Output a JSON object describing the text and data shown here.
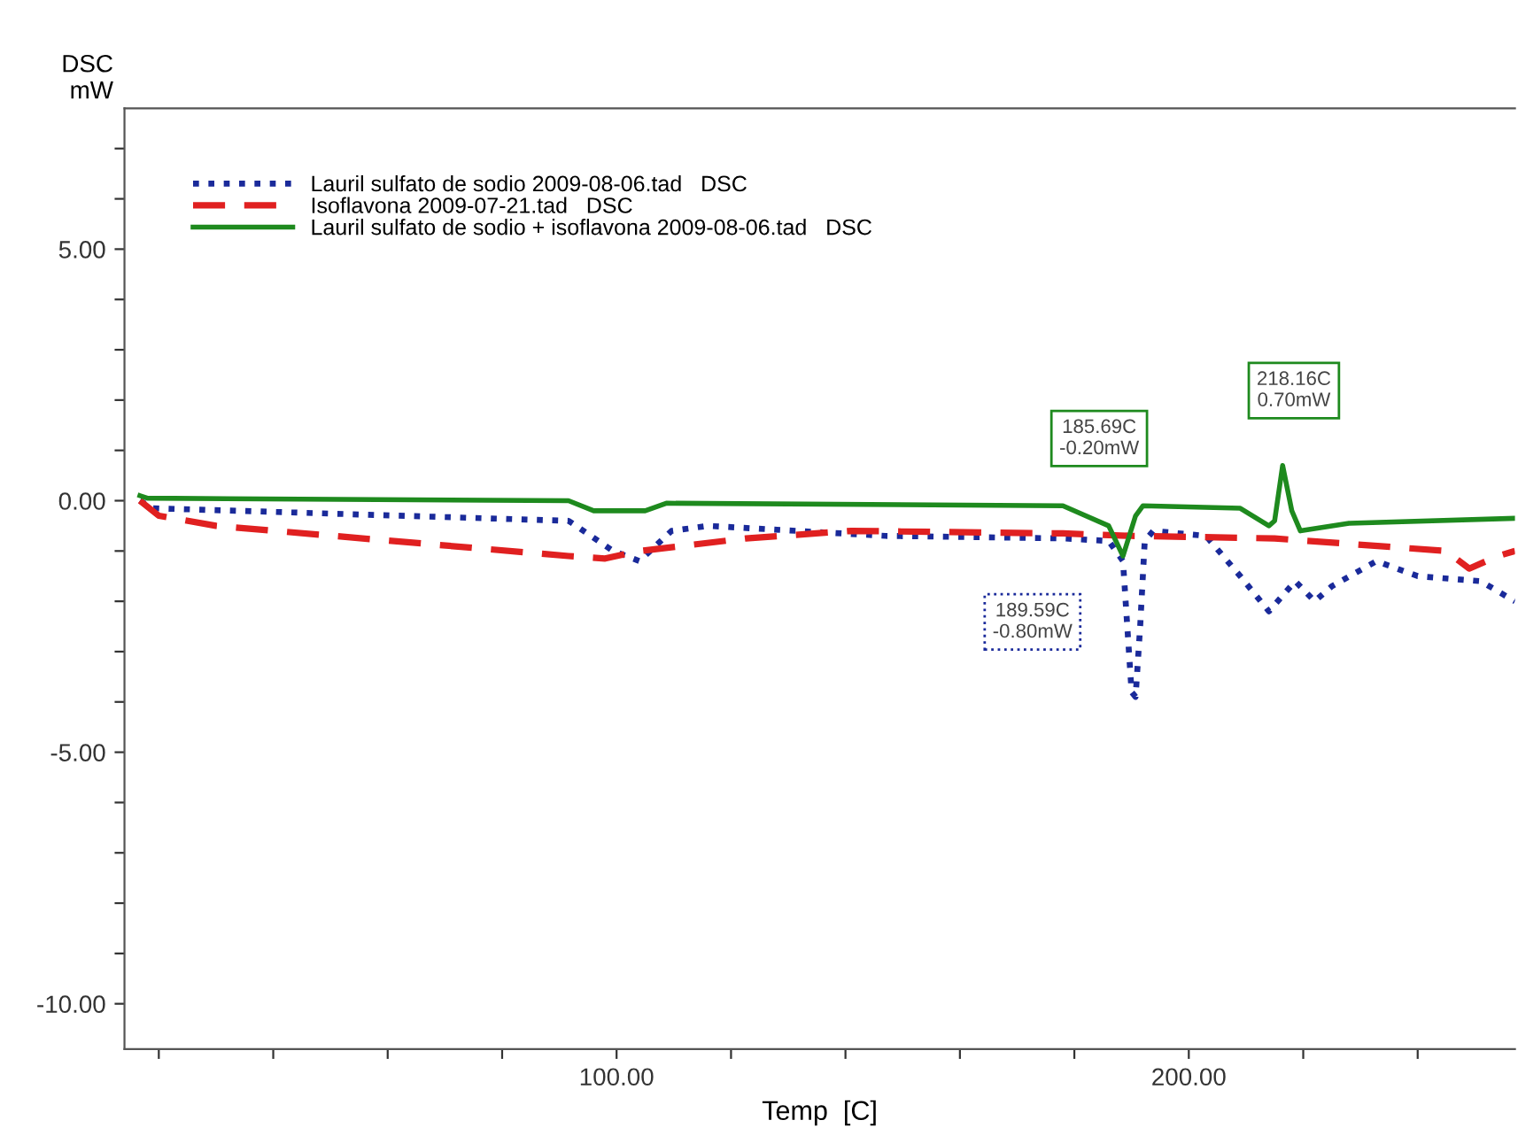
{
  "chart_data": {
    "type": "line",
    "ylabel": "DSC\nmW",
    "xlabel": "Temp  [C]",
    "xlim": [
      14,
      257
    ],
    "ylim": [
      -10.9,
      7.8
    ],
    "xticks": [
      {
        "value": 20,
        "label": null
      },
      {
        "value": 40,
        "label": null
      },
      {
        "value": 60,
        "label": null
      },
      {
        "value": 80,
        "label": null
      },
      {
        "value": 100,
        "label": "100.00"
      },
      {
        "value": 120,
        "label": null
      },
      {
        "value": 140,
        "label": null
      },
      {
        "value": 160,
        "label": null
      },
      {
        "value": 180,
        "label": null
      },
      {
        "value": 200,
        "label": "200.00"
      },
      {
        "value": 220,
        "label": null
      },
      {
        "value": 240,
        "label": null
      }
    ],
    "yticks": [
      {
        "value": -10,
        "label": "-10.00"
      },
      {
        "value": -9,
        "label": null
      },
      {
        "value": -8,
        "label": null
      },
      {
        "value": -7,
        "label": null
      },
      {
        "value": -6,
        "label": null
      },
      {
        "value": -5,
        "label": "-5.00"
      },
      {
        "value": -4,
        "label": null
      },
      {
        "value": -3,
        "label": null
      },
      {
        "value": -2,
        "label": null
      },
      {
        "value": -1,
        "label": null
      },
      {
        "value": 0,
        "label": "0.00"
      },
      {
        "value": 1,
        "label": null
      },
      {
        "value": 2,
        "label": null
      },
      {
        "value": 3,
        "label": null
      },
      {
        "value": 4,
        "label": null
      },
      {
        "value": 5,
        "label": "5.00"
      },
      {
        "value": 6,
        "label": null
      },
      {
        "value": 7,
        "label": null
      }
    ],
    "grid": false,
    "legend": "top left",
    "series": [
      {
        "name": "Lauril sulfato de sodio 2009-08-06.tad   DSC",
        "color": "#1a2a9a",
        "line_style": "dotted",
        "x": [
          16.7,
          19,
          91.6,
          99.4,
          104,
          109.6,
          116,
          147,
          178,
          186,
          188.5,
          190,
          190.7,
          191.5,
          192.3,
          193.8,
          203,
          209,
          214,
          218.6,
          222,
          225,
          232.8,
          240,
          251,
          257
        ],
        "values": [
          0.0,
          -0.15,
          -0.4,
          -1.0,
          -1.2,
          -0.6,
          -0.5,
          -0.7,
          -0.75,
          -0.8,
          -1.2,
          -3.8,
          -3.9,
          -2.5,
          -0.8,
          -0.6,
          -0.7,
          -1.5,
          -2.2,
          -1.6,
          -2.0,
          -1.7,
          -1.2,
          -1.5,
          -1.6,
          -2.0
        ]
      },
      {
        "name": "Isoflavona 2009-07-21.tad   DSC",
        "color": "#e02020",
        "line_style": "dashed",
        "x": [
          16.7,
          20,
          30,
          91.6,
          98,
          104,
          122.6,
          141,
          178,
          190,
          215,
          233,
          245,
          249,
          254,
          257
        ],
        "values": [
          0.0,
          -0.3,
          -0.5,
          -1.1,
          -1.15,
          -1.0,
          -0.75,
          -0.6,
          -0.65,
          -0.7,
          -0.75,
          -0.9,
          -1.0,
          -1.35,
          -1.1,
          -1.0
        ]
      },
      {
        "name": "Lauril sulfato de sodio + isoflavona 2009-08-06.tad   DSC",
        "color": "#1e8a1e",
        "line_style": "solid",
        "x": [
          16.7,
          18,
          91.6,
          96,
          105,
          108.7,
          178,
          186,
          188.5,
          190.7,
          192,
          209,
          214,
          215,
          216.4,
          218,
          219.5,
          228,
          257
        ],
        "values": [
          0.1,
          0.05,
          0.0,
          -0.2,
          -0.2,
          -0.05,
          -0.1,
          -0.5,
          -1.1,
          -0.3,
          -0.1,
          -0.15,
          -0.5,
          -0.4,
          0.7,
          -0.2,
          -0.6,
          -0.45,
          -0.35
        ]
      }
    ],
    "annotations": [
      "185.69C\n-0.20mW",
      "189.59C\n-0.80mW",
      "218.16C\n0.70mW"
    ]
  }
}
